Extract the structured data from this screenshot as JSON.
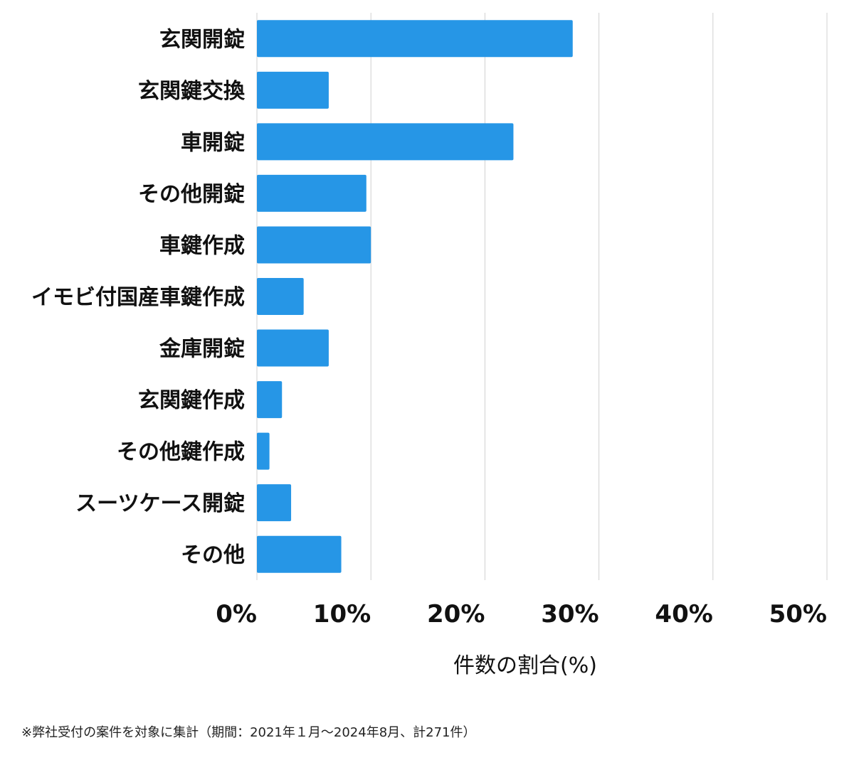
{
  "chart_data": {
    "type": "bar",
    "orientation": "horizontal",
    "categories": [
      "玄関開錠",
      "玄関鍵交換",
      "車開錠",
      "その他開錠",
      "車鍵作成",
      "イモビ付国産車鍵作成",
      "金庫開錠",
      "玄関鍵作成",
      "その他鍵作成",
      "スーツケース開錠",
      "その他"
    ],
    "values": [
      27.7,
      6.3,
      22.5,
      9.6,
      10.0,
      4.1,
      6.3,
      2.2,
      1.1,
      3.0,
      7.4
    ],
    "xlim": [
      0,
      50
    ],
    "ticks": [
      "0%",
      "10%",
      "20%",
      "30%",
      "40%",
      "50%"
    ],
    "tick_values": [
      0,
      10,
      20,
      30,
      40,
      50
    ],
    "xlabel": "件数の割合(%)",
    "ylabel": "",
    "title": "",
    "grid": true,
    "bar_color": "#2696e6",
    "grid_color": "#d0d0d0"
  },
  "footnote": "※弊社受付の案件を対象に集計（期間：2021年１月〜2024年8月、計271件）"
}
